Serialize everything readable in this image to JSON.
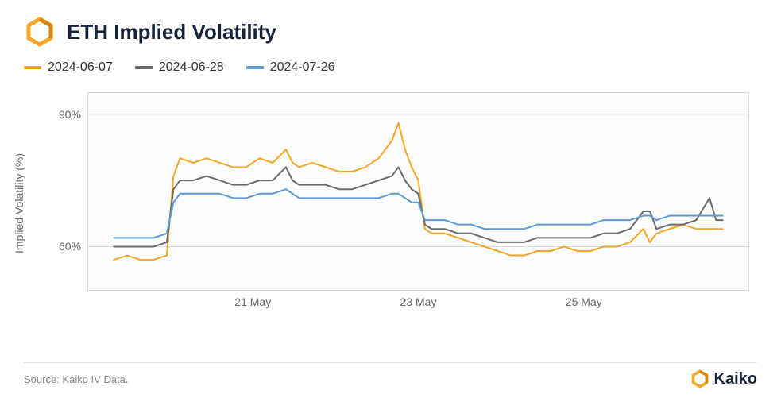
{
  "title": "ETH Implied Volatility",
  "title_color": "#16233a",
  "logo": {
    "outer": "#f5a623",
    "inner": "#f5a623"
  },
  "legend": [
    {
      "label": "2024-06-07",
      "color": "#f5a623"
    },
    {
      "label": "2024-06-28",
      "color": "#6b6b6b"
    },
    {
      "label": "2024-07-26",
      "color": "#5b9bd5"
    }
  ],
  "chart": {
    "type": "line",
    "ylabel": "Implied Volatility (%)",
    "label_fontsize": 14,
    "background_color": "#ffffff",
    "plot_bg": "#fcfcfc",
    "grid_color": "#d9d9d9",
    "border_color": "#d9d9d9",
    "line_width": 2,
    "ylim": [
      50,
      95
    ],
    "yticks": [
      {
        "v": 60,
        "label": "60%"
      },
      {
        "v": 90,
        "label": "90%"
      }
    ],
    "x_domain": [
      0,
      100
    ],
    "xticks": [
      {
        "x": 25,
        "label": "21 May"
      },
      {
        "x": 50,
        "label": "23 May"
      },
      {
        "x": 75,
        "label": "25 May"
      }
    ],
    "series": [
      {
        "name": "2024-06-07",
        "color": "#f5a623",
        "points": [
          [
            4,
            57
          ],
          [
            6,
            58
          ],
          [
            8,
            57
          ],
          [
            10,
            57
          ],
          [
            12,
            58
          ],
          [
            13,
            76
          ],
          [
            14,
            80
          ],
          [
            16,
            79
          ],
          [
            18,
            80
          ],
          [
            20,
            79
          ],
          [
            22,
            78
          ],
          [
            24,
            78
          ],
          [
            26,
            80
          ],
          [
            28,
            79
          ],
          [
            30,
            82
          ],
          [
            31,
            79
          ],
          [
            32,
            78
          ],
          [
            34,
            79
          ],
          [
            36,
            78
          ],
          [
            38,
            77
          ],
          [
            40,
            77
          ],
          [
            42,
            78
          ],
          [
            44,
            80
          ],
          [
            46,
            84
          ],
          [
            47,
            88
          ],
          [
            48,
            82
          ],
          [
            49,
            78
          ],
          [
            50,
            75
          ],
          [
            51,
            64
          ],
          [
            52,
            63
          ],
          [
            54,
            63
          ],
          [
            56,
            62
          ],
          [
            58,
            61
          ],
          [
            60,
            60
          ],
          [
            62,
            59
          ],
          [
            64,
            58
          ],
          [
            66,
            58
          ],
          [
            68,
            59
          ],
          [
            70,
            59
          ],
          [
            72,
            60
          ],
          [
            74,
            59
          ],
          [
            76,
            59
          ],
          [
            78,
            60
          ],
          [
            80,
            60
          ],
          [
            82,
            61
          ],
          [
            84,
            64
          ],
          [
            85,
            61
          ],
          [
            86,
            63
          ],
          [
            88,
            64
          ],
          [
            90,
            65
          ],
          [
            92,
            64
          ],
          [
            94,
            64
          ],
          [
            96,
            64
          ]
        ]
      },
      {
        "name": "2024-06-28",
        "color": "#6b6b6b",
        "points": [
          [
            4,
            60
          ],
          [
            6,
            60
          ],
          [
            8,
            60
          ],
          [
            10,
            60
          ],
          [
            12,
            61
          ],
          [
            13,
            73
          ],
          [
            14,
            75
          ],
          [
            16,
            75
          ],
          [
            18,
            76
          ],
          [
            20,
            75
          ],
          [
            22,
            74
          ],
          [
            24,
            74
          ],
          [
            26,
            75
          ],
          [
            28,
            75
          ],
          [
            30,
            78
          ],
          [
            31,
            75
          ],
          [
            32,
            74
          ],
          [
            34,
            74
          ],
          [
            36,
            74
          ],
          [
            38,
            73
          ],
          [
            40,
            73
          ],
          [
            42,
            74
          ],
          [
            44,
            75
          ],
          [
            46,
            76
          ],
          [
            47,
            78
          ],
          [
            48,
            75
          ],
          [
            49,
            73
          ],
          [
            50,
            72
          ],
          [
            51,
            65
          ],
          [
            52,
            64
          ],
          [
            54,
            64
          ],
          [
            56,
            63
          ],
          [
            58,
            63
          ],
          [
            60,
            62
          ],
          [
            62,
            61
          ],
          [
            64,
            61
          ],
          [
            66,
            61
          ],
          [
            68,
            62
          ],
          [
            70,
            62
          ],
          [
            72,
            62
          ],
          [
            74,
            62
          ],
          [
            76,
            62
          ],
          [
            78,
            63
          ],
          [
            80,
            63
          ],
          [
            82,
            64
          ],
          [
            84,
            68
          ],
          [
            85,
            68
          ],
          [
            86,
            64
          ],
          [
            88,
            65
          ],
          [
            90,
            65
          ],
          [
            92,
            66
          ],
          [
            94,
            71
          ],
          [
            95,
            66
          ],
          [
            96,
            66
          ]
        ]
      },
      {
        "name": "2024-07-26",
        "color": "#5b9bd5",
        "points": [
          [
            4,
            62
          ],
          [
            6,
            62
          ],
          [
            8,
            62
          ],
          [
            10,
            62
          ],
          [
            12,
            63
          ],
          [
            13,
            70
          ],
          [
            14,
            72
          ],
          [
            16,
            72
          ],
          [
            18,
            72
          ],
          [
            20,
            72
          ],
          [
            22,
            71
          ],
          [
            24,
            71
          ],
          [
            26,
            72
          ],
          [
            28,
            72
          ],
          [
            30,
            73
          ],
          [
            31,
            72
          ],
          [
            32,
            71
          ],
          [
            34,
            71
          ],
          [
            36,
            71
          ],
          [
            38,
            71
          ],
          [
            40,
            71
          ],
          [
            42,
            71
          ],
          [
            44,
            71
          ],
          [
            46,
            72
          ],
          [
            47,
            72
          ],
          [
            48,
            71
          ],
          [
            49,
            70
          ],
          [
            50,
            70
          ],
          [
            51,
            66
          ],
          [
            52,
            66
          ],
          [
            54,
            66
          ],
          [
            56,
            65
          ],
          [
            58,
            65
          ],
          [
            60,
            64
          ],
          [
            62,
            64
          ],
          [
            64,
            64
          ],
          [
            66,
            64
          ],
          [
            68,
            65
          ],
          [
            70,
            65
          ],
          [
            72,
            65
          ],
          [
            74,
            65
          ],
          [
            76,
            65
          ],
          [
            78,
            66
          ],
          [
            80,
            66
          ],
          [
            82,
            66
          ],
          [
            84,
            67
          ],
          [
            85,
            67
          ],
          [
            86,
            66
          ],
          [
            88,
            67
          ],
          [
            90,
            67
          ],
          [
            92,
            67
          ],
          [
            94,
            67
          ],
          [
            96,
            67
          ]
        ]
      }
    ]
  },
  "footer": {
    "source": "Source: Kaiko IV Data.",
    "brand": "Kaiko"
  }
}
